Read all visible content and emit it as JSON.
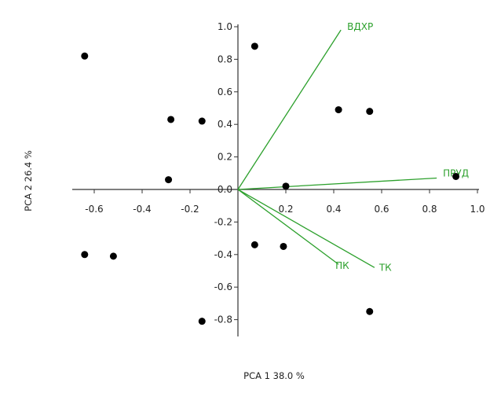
{
  "chart_data": {
    "type": "scatter",
    "subtype": "pca-biplot",
    "xlabel": "PCA 1  38.0 %",
    "ylabel": "PCA 2  26.4 %",
    "xlim": [
      -0.7,
      1.0
    ],
    "ylim": [
      -0.9,
      1.0
    ],
    "x_ticks": [
      -0.6,
      -0.4,
      -0.2,
      0.2,
      0.4,
      0.6,
      0.8,
      1.0
    ],
    "x_tick_labels": [
      "-0.6",
      "-0.4",
      "-0.2",
      "0.2",
      "0.4",
      "0.6",
      "0.8",
      "1.0"
    ],
    "y_ticks": [
      1.0,
      0.8,
      0.6,
      0.4,
      0.2,
      0.0,
      -0.2,
      -0.4,
      -0.6,
      -0.8
    ],
    "y_tick_labels": [
      "1.0",
      "0.8",
      "0.6",
      "0.4",
      "0.2",
      "0.0",
      "-0.2",
      "-0.4",
      "-0.6",
      "-0.8"
    ],
    "grid": false,
    "point_color": "#000000",
    "vector_color": "#2ca02c",
    "points": [
      {
        "x": -0.64,
        "y": 0.82
      },
      {
        "x": 0.07,
        "y": 0.88
      },
      {
        "x": 0.42,
        "y": 0.49
      },
      {
        "x": 0.55,
        "y": 0.48
      },
      {
        "x": -0.28,
        "y": 0.43
      },
      {
        "x": -0.15,
        "y": 0.42
      },
      {
        "x": -0.29,
        "y": 0.06
      },
      {
        "x": 0.2,
        "y": 0.02
      },
      {
        "x": 0.91,
        "y": 0.08
      },
      {
        "x": -0.64,
        "y": -0.4
      },
      {
        "x": -0.52,
        "y": -0.41
      },
      {
        "x": 0.07,
        "y": -0.34
      },
      {
        "x": 0.19,
        "y": -0.35
      },
      {
        "x": -0.15,
        "y": -0.81
      },
      {
        "x": 0.55,
        "y": -0.75
      }
    ],
    "vectors": [
      {
        "name": "ВДХР",
        "x": 0.43,
        "y": 0.98
      },
      {
        "name": "ПРУД",
        "x": 0.83,
        "y": 0.07
      },
      {
        "name": "ПК",
        "x": 0.42,
        "y": -0.46
      },
      {
        "name": "ТК",
        "x": 0.57,
        "y": -0.48
      }
    ]
  }
}
